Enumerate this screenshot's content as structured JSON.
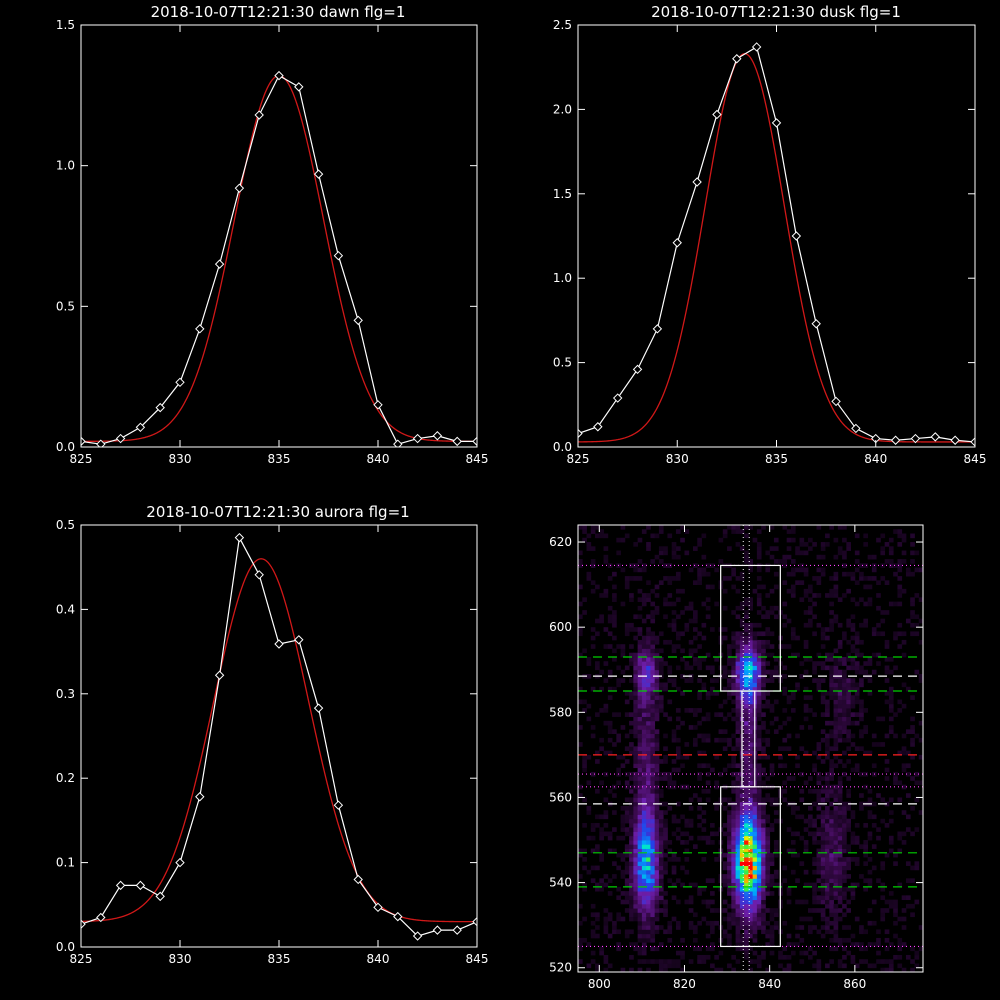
{
  "colors": {
    "background": "#000000",
    "axes": "#ffffff",
    "observed": "#ffffff",
    "fit": "#d01818",
    "green_dash": "#00d000",
    "white_dash": "#ffffff",
    "red_dash": "#ff2020",
    "magenta_dot": "#ff40ff",
    "center_dot": "#ffffff"
  },
  "chart_data": [
    {
      "id": "dawn",
      "type": "line",
      "title": "2018-10-07T12:21:30 dawn flg=1",
      "xlim": [
        825,
        845
      ],
      "ylim": [
        0,
        1.5
      ],
      "xticks": [
        825,
        830,
        835,
        840,
        845
      ],
      "xtick_labels": [
        "825",
        "830",
        "835",
        "840",
        "845"
      ],
      "yticks": [
        0,
        0.5,
        1.0,
        1.5
      ],
      "ytick_labels": [
        "0.0",
        "0.5",
        "1.0",
        "1.5"
      ],
      "x": [
        825,
        826,
        827,
        828,
        829,
        830,
        831,
        832,
        833,
        834,
        835,
        836,
        837,
        838,
        839,
        840,
        841,
        842,
        843,
        844,
        845
      ],
      "observed": [
        0.02,
        0.01,
        0.03,
        0.07,
        0.14,
        0.23,
        0.42,
        0.65,
        0.92,
        1.18,
        1.32,
        1.28,
        0.97,
        0.68,
        0.45,
        0.15,
        0.01,
        0.03,
        0.04,
        0.02,
        0.02
      ],
      "fit": {
        "amplitude": 1.3,
        "center": 835.0,
        "sigma": 2.25,
        "baseline": 0.02
      }
    },
    {
      "id": "dusk",
      "type": "line",
      "title": "2018-10-07T12:21:30 dusk flg=1",
      "xlim": [
        825,
        845
      ],
      "ylim": [
        0,
        2.5
      ],
      "xticks": [
        825,
        830,
        835,
        840,
        845
      ],
      "xtick_labels": [
        "825",
        "830",
        "835",
        "840",
        "845"
      ],
      "yticks": [
        0,
        0.5,
        1.0,
        1.5,
        2.0,
        2.5
      ],
      "ytick_labels": [
        "0.0",
        "0.5",
        "1.0",
        "1.5",
        "2.0",
        "2.5"
      ],
      "x": [
        825,
        826,
        827,
        828,
        829,
        830,
        831,
        832,
        833,
        834,
        835,
        836,
        837,
        838,
        839,
        840,
        841,
        842,
        843,
        844,
        845
      ],
      "observed": [
        0.08,
        0.12,
        0.29,
        0.46,
        0.7,
        1.21,
        1.57,
        1.97,
        2.3,
        2.37,
        1.92,
        1.25,
        0.73,
        0.27,
        0.11,
        0.05,
        0.04,
        0.05,
        0.06,
        0.04,
        0.03
      ],
      "fit": {
        "amplitude": 2.3,
        "center": 833.4,
        "sigma": 2.0,
        "baseline": 0.03
      }
    },
    {
      "id": "aurora",
      "type": "line",
      "title": "2018-10-07T12:21:30 aurora flg=1",
      "xlim": [
        825,
        845
      ],
      "ylim": [
        0,
        0.5
      ],
      "xticks": [
        825,
        830,
        835,
        840,
        845
      ],
      "xtick_labels": [
        "825",
        "830",
        "835",
        "840",
        "845"
      ],
      "yticks": [
        0,
        0.1,
        0.2,
        0.3,
        0.4,
        0.5
      ],
      "ytick_labels": [
        "0.0",
        "0.1",
        "0.2",
        "0.3",
        "0.4",
        "0.5"
      ],
      "x": [
        825,
        826,
        827,
        828,
        829,
        830,
        831,
        832,
        833,
        834,
        835,
        836,
        837,
        838,
        839,
        840,
        841,
        842,
        843,
        844,
        845
      ],
      "observed": [
        0.027,
        0.035,
        0.073,
        0.073,
        0.06,
        0.1,
        0.178,
        0.322,
        0.485,
        0.441,
        0.359,
        0.364,
        0.283,
        0.168,
        0.08,
        0.047,
        0.036,
        0.013,
        0.02,
        0.02,
        0.03
      ],
      "fit": {
        "amplitude": 0.43,
        "center": 834.1,
        "sigma": 2.4,
        "baseline": 0.03
      }
    },
    {
      "id": "image",
      "type": "heatmap",
      "title": "",
      "xlim": [
        795,
        876
      ],
      "ylim": [
        519,
        624
      ],
      "xticks": [
        800,
        820,
        840,
        860
      ],
      "xtick_labels": [
        "800",
        "820",
        "840",
        "860"
      ],
      "yticks": [
        520,
        540,
        560,
        580,
        600,
        620
      ],
      "ytick_labels": [
        "520",
        "540",
        "560",
        "580",
        "600",
        "620"
      ],
      "sources": [
        {
          "x": 835,
          "y": 545,
          "sx": 2.2,
          "sy": 7.5,
          "a": 1.0
        },
        {
          "x": 835,
          "y": 589,
          "sx": 2.0,
          "sy": 4.5,
          "a": 0.55
        },
        {
          "x": 835,
          "y": 575,
          "sx": 1.6,
          "sy": 12,
          "a": 0.18
        },
        {
          "x": 811,
          "y": 545,
          "sx": 2.0,
          "sy": 8,
          "a": 0.55
        },
        {
          "x": 811,
          "y": 589,
          "sx": 1.8,
          "sy": 4,
          "a": 0.28
        },
        {
          "x": 811,
          "y": 568,
          "sx": 1.8,
          "sy": 16,
          "a": 0.16
        },
        {
          "x": 855,
          "y": 547,
          "sx": 2.5,
          "sy": 10,
          "a": 0.14
        },
        {
          "x": 857,
          "y": 585,
          "sx": 2.5,
          "sy": 7,
          "a": 0.1
        }
      ],
      "boxes": [
        {
          "x0": 828.5,
          "x1": 842.5,
          "y0": 525,
          "y1": 562.5
        },
        {
          "x0": 828.5,
          "x1": 842.5,
          "y0": 585,
          "y1": 614.5
        },
        {
          "x0": 833.5,
          "x1": 836.5,
          "y0": 562.5,
          "y1": 585
        }
      ],
      "hlines": [
        {
          "y": 593,
          "style": "green_dash"
        },
        {
          "y": 588.5,
          "style": "white_dash"
        },
        {
          "y": 585,
          "style": "green_dash"
        },
        {
          "y": 570,
          "style": "red_dash"
        },
        {
          "y": 558.5,
          "style": "white_dash"
        },
        {
          "y": 547,
          "style": "green_dash"
        },
        {
          "y": 539,
          "style": "green_dash"
        },
        {
          "y": 614.5,
          "style": "magenta_dot"
        },
        {
          "y": 565.5,
          "style": "magenta_dot"
        },
        {
          "y": 562.5,
          "style": "magenta_dot"
        },
        {
          "y": 525,
          "style": "magenta_dot"
        }
      ],
      "vlines": [
        {
          "x": 833.8,
          "style": "center_dot"
        },
        {
          "x": 835.2,
          "style": "center_dot"
        }
      ]
    }
  ]
}
